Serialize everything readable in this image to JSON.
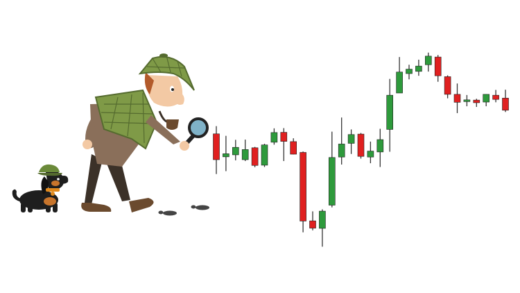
{
  "colors": {
    "bullish": "#2e9a3c",
    "bearish": "#e02020",
    "wick": "#333333",
    "tweed": "#7f9a47",
    "tweed_dark": "#556b2f",
    "coat": "#8a6f5a",
    "skin": "#f3c9a4",
    "hair": "#b35a2a",
    "trousers": "#3b3128",
    "shoes": "#6b4a2e",
    "dog_body": "#1e1e1e",
    "dog_tan": "#c8752c",
    "collar": "#e08a1e",
    "lens": "#7fb2c8"
  },
  "illustration": {
    "detective_icon": "detective-with-magnifying-glass-icon",
    "dog_icon": "dachshund-in-deerstalker-icon",
    "footprints_icon": "footprints-icon"
  },
  "chart_data": {
    "type": "candlestick",
    "title": "",
    "xlabel": "",
    "ylabel": "",
    "axes_visible": false,
    "grid": false,
    "ylim": [
      0,
      100
    ],
    "candles": [
      {
        "open": 59.5,
        "close": 47.8,
        "high": 63.0,
        "low": 41.3
      },
      {
        "open": 49.1,
        "close": 50.5,
        "high": 58.6,
        "low": 42.6
      },
      {
        "open": 50.0,
        "close": 53.4,
        "high": 56.8,
        "low": 47.5
      },
      {
        "open": 47.8,
        "close": 52.4,
        "high": 56.9,
        "low": 47.2
      },
      {
        "open": 53.2,
        "close": 45.2,
        "high": 53.6,
        "low": 44.4
      },
      {
        "open": 45.3,
        "close": 54.5,
        "high": 55.0,
        "low": 44.5
      },
      {
        "open": 55.7,
        "close": 60.1,
        "high": 62.0,
        "low": 54.6
      },
      {
        "open": 60.2,
        "close": 56.1,
        "high": 62.1,
        "low": 47.2
      },
      {
        "open": 56.0,
        "close": 50.3,
        "high": 57.5,
        "low": 50.2
      },
      {
        "open": 51.1,
        "close": 20.0,
        "high": 51.5,
        "low": 14.9
      },
      {
        "open": 20.1,
        "close": 16.8,
        "high": 24.4,
        "low": 15.8
      },
      {
        "open": 16.7,
        "close": 24.5,
        "high": 25.3,
        "low": 8.4
      },
      {
        "open": 27.2,
        "close": 48.8,
        "high": 60.5,
        "low": 26.2
      },
      {
        "open": 49.0,
        "close": 54.9,
        "high": 66.9,
        "low": 45.6
      },
      {
        "open": 55.2,
        "close": 59.2,
        "high": 61.5,
        "low": 50.4
      },
      {
        "open": 59.4,
        "close": 49.3,
        "high": 59.9,
        "low": 48.3
      },
      {
        "open": 49.0,
        "close": 51.7,
        "high": 56.0,
        "low": 46.2
      },
      {
        "open": 51.3,
        "close": 56.9,
        "high": 61.8,
        "low": 44.5
      },
      {
        "open": 61.5,
        "close": 77.0,
        "high": 84.4,
        "low": 51.4
      },
      {
        "open": 78.0,
        "close": 87.5,
        "high": 94.3,
        "low": 78.1
      },
      {
        "open": 86.8,
        "close": 88.8,
        "high": 90.8,
        "low": 84.2
      },
      {
        "open": 87.8,
        "close": 90.2,
        "high": 93.1,
        "low": 85.8
      },
      {
        "open": 90.8,
        "close": 94.7,
        "high": 96.3,
        "low": 87.7
      },
      {
        "open": 94.3,
        "close": 85.8,
        "high": 95.2,
        "low": 83.1
      },
      {
        "open": 85.4,
        "close": 77.4,
        "high": 86.0,
        "low": 75.6
      },
      {
        "open": 77.4,
        "close": 73.8,
        "high": 82.3,
        "low": 68.9
      },
      {
        "open": 74.1,
        "close": 74.9,
        "high": 77.1,
        "low": 72.0
      },
      {
        "open": 74.8,
        "close": 73.6,
        "high": 75.4,
        "low": 71.7
      },
      {
        "open": 73.9,
        "close": 77.4,
        "high": 77.5,
        "low": 72.0
      },
      {
        "open": 77.0,
        "close": 75.1,
        "high": 79.4,
        "low": 73.8
      },
      {
        "open": 75.7,
        "close": 70.2,
        "high": 79.5,
        "low": 69.4
      }
    ]
  }
}
